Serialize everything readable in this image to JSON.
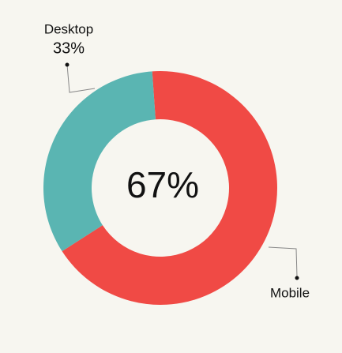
{
  "chart_data": {
    "type": "donut",
    "categories": [
      "Mobile",
      "Desktop"
    ],
    "values": [
      67,
      33
    ],
    "value_labels": [
      "67%",
      "33%"
    ],
    "colors": [
      "#f04a45",
      "#5ab5b2"
    ]
  }
}
